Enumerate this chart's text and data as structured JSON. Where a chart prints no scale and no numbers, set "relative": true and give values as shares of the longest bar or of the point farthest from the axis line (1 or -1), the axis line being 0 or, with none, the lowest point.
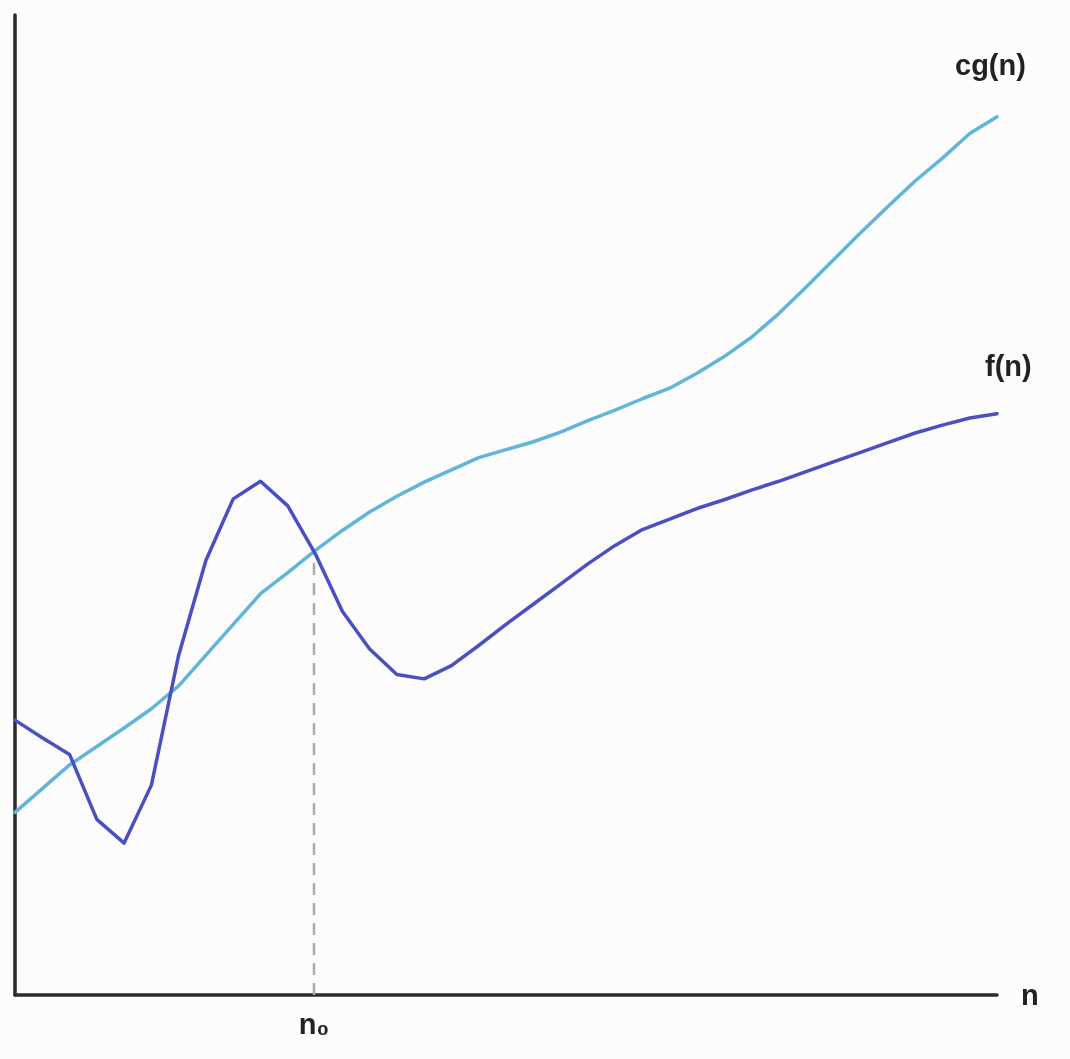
{
  "chart_data": {
    "type": "line",
    "relative": true,
    "xlabel": "n",
    "annotations": [
      "n₀"
    ],
    "marker": "none",
    "line_style": "solid",
    "grid": false,
    "legend": false,
    "categories": [
      null,
      null,
      null,
      null,
      null,
      null,
      null,
      null,
      null,
      null,
      null,
      null,
      null,
      null,
      null,
      null,
      null,
      null,
      null,
      null,
      null,
      null,
      null,
      null,
      null,
      null,
      null,
      null,
      null,
      null,
      null,
      null,
      null,
      null,
      null,
      null,
      null
    ],
    "series": [
      {
        "name": "cg(n)",
        "color": "#62b4d8",
        "values": [
          0.208,
          0.235,
          0.262,
          0.283,
          0.304,
          0.326,
          0.352,
          0.387,
          0.422,
          0.457,
          0.481,
          0.506,
          0.529,
          0.55,
          0.568,
          0.584,
          0.598,
          0.612,
          0.621,
          0.63,
          0.641,
          0.654,
          0.666,
          0.679,
          0.691,
          0.708,
          0.727,
          0.749,
          0.776,
          0.806,
          0.837,
          0.868,
          0.898,
          0.927,
          0.953,
          0.981,
          1.0
        ]
      },
      {
        "name": "f(n)",
        "color": "#4b4fc0",
        "values": [
          0.313,
          0.293,
          0.274,
          0.2,
          0.173,
          0.239,
          0.387,
          0.495,
          0.565,
          0.585,
          0.557,
          0.503,
          0.437,
          0.394,
          0.365,
          0.36,
          0.375,
          0.398,
          0.422,
          0.445,
          0.468,
          0.491,
          0.512,
          0.53,
          0.542,
          0.554,
          0.564,
          0.575,
          0.585,
          0.596,
          0.607,
          0.618,
          0.629,
          0.64,
          0.649,
          0.657,
          0.662
        ]
      }
    ]
  }
}
